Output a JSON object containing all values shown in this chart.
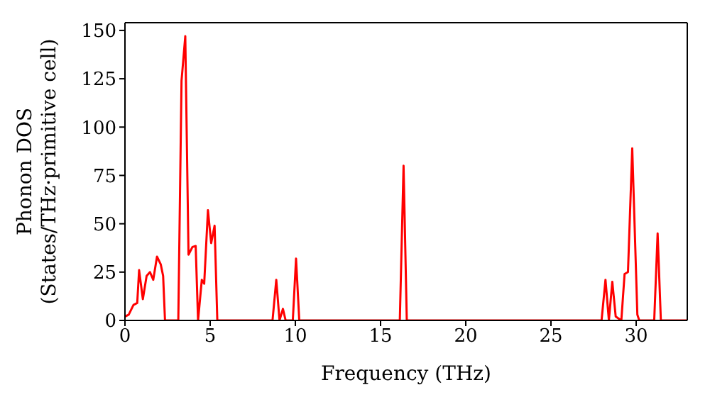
{
  "chart_data": {
    "type": "line",
    "xlabel": "Frequency (THz)",
    "ylabel": "Phonon DOS\n(States/THz·primitive cell)",
    "xlim": [
      0,
      33
    ],
    "xticks": [
      0,
      5,
      10,
      15,
      20,
      25,
      30
    ],
    "ylim": [
      0,
      154
    ],
    "yticks": [
      0,
      25,
      50,
      75,
      100,
      125,
      150
    ],
    "marker": "none",
    "line_style": "solid",
    "series": [
      {
        "color": "#ff0000",
        "x": [
          0,
          0.22,
          0.5,
          0.72,
          0.83,
          1.05,
          1.27,
          1.47,
          1.66,
          1.88,
          2.1,
          2.24,
          2.35,
          3.13,
          3.32,
          3.54,
          3.73,
          3.96,
          4.15,
          4.29,
          4.51,
          4.65,
          4.87,
          5.06,
          5.26,
          5.42,
          8.66,
          8.88,
          9.07,
          9.27,
          9.43,
          9.85,
          10.04,
          10.23,
          16.13,
          16.35,
          16.54,
          27.97,
          28.2,
          28.4,
          28.6,
          28.8,
          29.13,
          29.32,
          29.52,
          29.77,
          30.07,
          30.18,
          31.06,
          31.26,
          31.45,
          33
        ],
        "values": [
          2,
          3,
          8,
          9,
          26,
          11,
          23,
          25,
          21,
          33,
          29,
          23,
          0,
          0,
          124,
          147,
          34,
          38,
          38.5,
          0,
          21,
          19,
          57,
          40,
          49,
          0,
          0,
          21,
          0,
          6,
          0,
          0,
          32,
          0,
          0,
          80,
          0,
          0,
          21,
          0,
          20,
          2,
          0,
          24,
          25,
          89,
          3,
          0,
          0,
          45,
          0,
          0
        ]
      }
    ]
  }
}
